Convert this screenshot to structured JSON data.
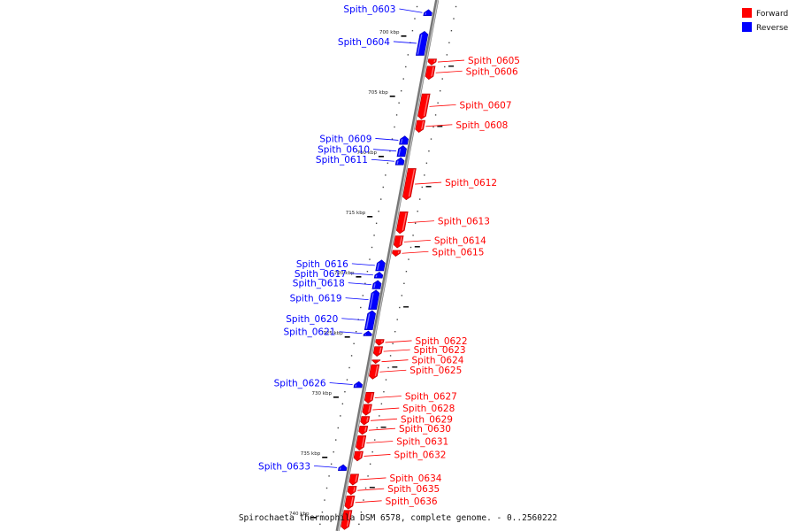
{
  "caption": "Spirochaeta thermophila DSM 6578, complete genome. - 0..2560222",
  "colors": {
    "forward": "#ff0000",
    "reverse": "#0000ff"
  },
  "legend": [
    {
      "label": "Forward",
      "strand": "forward"
    },
    {
      "label": "Reverse",
      "strand": "reverse"
    }
  ],
  "ticks": [
    {
      "label": "700 kbp",
      "kbp": 700
    },
    {
      "label": "705 kbp",
      "kbp": 705
    },
    {
      "label": "710 kbp",
      "kbp": 710
    },
    {
      "label": "715 kbp",
      "kbp": 715
    },
    {
      "label": "720 kbp",
      "kbp": 720
    },
    {
      "label": "725 kbp",
      "kbp": 725
    },
    {
      "label": "730 kbp",
      "kbp": 730
    },
    {
      "label": "735 kbp",
      "kbp": 735
    },
    {
      "label": "740 kbp",
      "kbp": 740
    }
  ],
  "genes": [
    {
      "name": "Spith_0603",
      "strand": "reverse",
      "start": 697.8,
      "end": 698.3
    },
    {
      "name": "Spith_0604",
      "strand": "reverse",
      "start": 699.6,
      "end": 701.6
    },
    {
      "name": "Spith_0605",
      "strand": "forward",
      "start": 701.9,
      "end": 702.4
    },
    {
      "name": "Spith_0606",
      "strand": "forward",
      "start": 702.5,
      "end": 703.6
    },
    {
      "name": "Spith_0607",
      "strand": "forward",
      "start": 704.8,
      "end": 706.9
    },
    {
      "name": "Spith_0608",
      "strand": "forward",
      "start": 707.0,
      "end": 708.0
    },
    {
      "name": "Spith_0609",
      "strand": "reverse",
      "start": 708.3,
      "end": 709.0
    },
    {
      "name": "Spith_0610",
      "strand": "reverse",
      "start": 709.1,
      "end": 710.0
    },
    {
      "name": "Spith_0611",
      "strand": "reverse",
      "start": 710.1,
      "end": 710.7
    },
    {
      "name": "Spith_0612",
      "strand": "forward",
      "start": 711.0,
      "end": 713.6
    },
    {
      "name": "Spith_0613",
      "strand": "forward",
      "start": 714.6,
      "end": 716.4
    },
    {
      "name": "Spith_0614",
      "strand": "forward",
      "start": 716.6,
      "end": 717.6
    },
    {
      "name": "Spith_0615",
      "strand": "forward",
      "start": 717.8,
      "end": 718.3
    },
    {
      "name": "Spith_0616",
      "strand": "reverse",
      "start": 718.6,
      "end": 719.5
    },
    {
      "name": "Spith_0617",
      "strand": "reverse",
      "start": 719.6,
      "end": 720.1
    },
    {
      "name": "Spith_0618",
      "strand": "reverse",
      "start": 720.3,
      "end": 721.0
    },
    {
      "name": "Spith_0619",
      "strand": "reverse",
      "start": 721.1,
      "end": 722.7
    },
    {
      "name": "Spith_0620",
      "strand": "reverse",
      "start": 722.8,
      "end": 724.4
    },
    {
      "name": "Spith_0621",
      "strand": "reverse",
      "start": 724.5,
      "end": 724.9
    },
    {
      "name": "Spith_0622",
      "strand": "forward",
      "start": 725.2,
      "end": 725.7
    },
    {
      "name": "Spith_0623",
      "strand": "forward",
      "start": 725.8,
      "end": 726.6
    },
    {
      "name": "Spith_0624",
      "strand": "forward",
      "start": 726.9,
      "end": 727.2
    },
    {
      "name": "Spith_0625",
      "strand": "forward",
      "start": 727.3,
      "end": 728.5
    },
    {
      "name": "Spith_0626",
      "strand": "reverse",
      "start": 728.7,
      "end": 729.2
    },
    {
      "name": "Spith_0627",
      "strand": "forward",
      "start": 729.6,
      "end": 730.5
    },
    {
      "name": "Spith_0628",
      "strand": "forward",
      "start": 730.6,
      "end": 731.5
    },
    {
      "name": "Spith_0629",
      "strand": "forward",
      "start": 731.6,
      "end": 732.3
    },
    {
      "name": "Spith_0630",
      "strand": "forward",
      "start": 732.4,
      "end": 733.1
    },
    {
      "name": "Spith_0631",
      "strand": "forward",
      "start": 733.2,
      "end": 734.4
    },
    {
      "name": "Spith_0632",
      "strand": "forward",
      "start": 734.5,
      "end": 735.3
    },
    {
      "name": "Spith_0633",
      "strand": "reverse",
      "start": 735.6,
      "end": 736.1
    },
    {
      "name": "Spith_0634",
      "strand": "forward",
      "start": 736.4,
      "end": 737.3
    },
    {
      "name": "Spith_0635",
      "strand": "forward",
      "start": 737.4,
      "end": 738.1
    },
    {
      "name": "Spith_0636",
      "strand": "forward",
      "start": 738.2,
      "end": 739.3
    },
    {
      "name": "",
      "strand": "forward",
      "start": 739.4,
      "end": 741.0
    }
  ]
}
